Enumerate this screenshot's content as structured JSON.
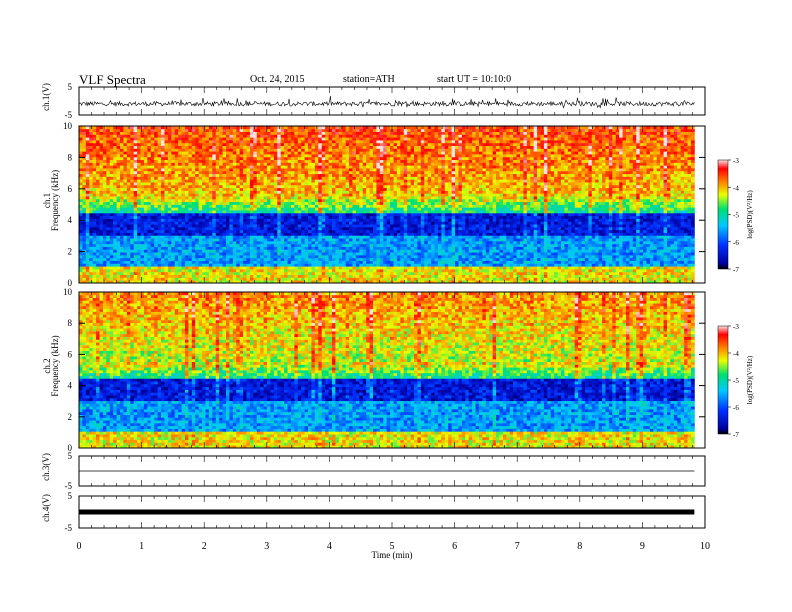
{
  "header": {
    "title": "VLF  Spectra",
    "date": "Oct. 24, 2015",
    "station": "station=ATH",
    "start": "start  UT  =   10:10:0"
  },
  "chart_data": [
    {
      "type": "line",
      "ylabel": "ch.1(V)",
      "yticks": [
        "5",
        "-5"
      ],
      "ylim": [
        -5,
        5
      ],
      "description_values": "noisy waveform around ~-1 V with spikes to ~0.5 V",
      "x_range_min": [
        0,
        9.83
      ]
    },
    {
      "type": "heatmap",
      "ylabel": "Frequency  (kHz)",
      "channel": "ch.1",
      "yticks": [
        "0",
        "2",
        "4",
        "6",
        "8",
        "10"
      ],
      "ylim": [
        0,
        10
      ],
      "colorbar": {
        "label": "log(PSD)(V²/Hz)",
        "ticks": [
          "-3",
          "-4",
          "-5",
          "-6",
          "-7"
        ],
        "range": [
          -7,
          -3
        ]
      },
      "x_range_min": [
        0,
        9.83
      ]
    },
    {
      "type": "heatmap",
      "ylabel": "Frequency  (kHz)",
      "channel": "ch.2",
      "yticks": [
        "0",
        "2",
        "4",
        "6",
        "8",
        "10"
      ],
      "ylim": [
        0,
        10
      ],
      "colorbar": {
        "label": "log(PSD)(V²/Hz)",
        "ticks": [
          "-3",
          "-4",
          "-5",
          "-6",
          "-7"
        ],
        "range": [
          -7,
          -3
        ]
      },
      "x_range_min": [
        0,
        9.83
      ]
    },
    {
      "type": "line",
      "ylabel": "ch.3(V)",
      "yticks": [
        "5",
        "-5"
      ],
      "ylim": [
        -5,
        5
      ],
      "level": 0,
      "x_range_min": [
        0,
        9.83
      ]
    },
    {
      "type": "line",
      "ylabel": "ch.4(V)",
      "yticks": [
        "5",
        "-5"
      ],
      "ylim": [
        -5,
        5
      ],
      "level": 0,
      "x_range_min": [
        0,
        9.83
      ]
    }
  ],
  "xaxis": {
    "label": "Time  (min)",
    "ticks": [
      "0",
      "1",
      "2",
      "3",
      "4",
      "5",
      "6",
      "7",
      "8",
      "9",
      "10"
    ],
    "xlim": [
      0,
      10
    ]
  }
}
